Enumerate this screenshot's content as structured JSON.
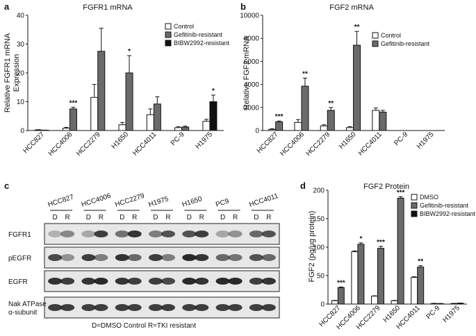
{
  "colors": {
    "control": "#ffffff",
    "gefitinib": "#6b6b6b",
    "bibw": "#111111",
    "axis": "#111111"
  },
  "panels": {
    "a": {
      "letter": "a",
      "title": "FGFR1 mRNA"
    },
    "b": {
      "letter": "b",
      "title": "FGF2 mRNA"
    },
    "c": {
      "letter": "c"
    },
    "d": {
      "letter": "d",
      "title": "FGF2 Protein"
    }
  },
  "chart_data": [
    {
      "id": "a",
      "type": "bar",
      "title": "FGFR1 mRNA",
      "ylabel": "Relative FGFR1 mRNA\nExpression",
      "ylim": [
        0,
        40
      ],
      "yticks": [
        0,
        10,
        20,
        30,
        40
      ],
      "categories": [
        "HCC827",
        "HCC4006",
        "HCC2279",
        "H1650",
        "HCC4011",
        "PC-9",
        "H1975"
      ],
      "legend_position": "top-right",
      "series": [
        {
          "name": "Control",
          "color": "#ffffff",
          "values": [
            0.2,
            0.8,
            11.5,
            2,
            5.5,
            1,
            3.2
          ],
          "errors": [
            0.1,
            0.3,
            4.5,
            0.8,
            2,
            0.3,
            0.7
          ]
        },
        {
          "name": "Gefitinib-resistant",
          "color": "#6b6b6b",
          "values": [
            0.1,
            7.5,
            27.5,
            20,
            9.2,
            1.2,
            null
          ],
          "errors": [
            0.05,
            0.6,
            8,
            6,
            2.5,
            0.3,
            null
          ]
        },
        {
          "name": "BIBW2992-resistant",
          "color": "#111111",
          "values": [
            null,
            null,
            null,
            null,
            null,
            null,
            10
          ],
          "errors": [
            null,
            null,
            null,
            null,
            null,
            null,
            2.3
          ]
        }
      ],
      "annotations": [
        {
          "category": "HCC4006",
          "text": "***"
        },
        {
          "category": "H1650",
          "text": "*"
        },
        {
          "category": "H1975",
          "text": "*"
        }
      ]
    },
    {
      "id": "b",
      "type": "bar",
      "title": "FGF2 mRNA",
      "ylabel": "Relative FGF2 mRNA",
      "ylim": [
        0,
        10000
      ],
      "yticks": [
        0,
        2000,
        4000,
        6000,
        8000,
        10000
      ],
      "categories": [
        "HCC827",
        "HCC4006",
        "HCC2279",
        "H1650",
        "HCC4011",
        "PC-9",
        "H1975"
      ],
      "legend_position": "top-right",
      "series": [
        {
          "name": "Control",
          "color": "#ffffff",
          "values": [
            100,
            700,
            400,
            250,
            1750,
            0,
            0
          ],
          "errors": [
            50,
            250,
            100,
            80,
            200,
            0,
            0
          ]
        },
        {
          "name": "Gefitinib-resistant",
          "color": "#6b6b6b",
          "values": [
            750,
            3850,
            1750,
            7400,
            1600,
            0,
            0
          ],
          "errors": [
            80,
            700,
            250,
            1200,
            150,
            0,
            0
          ]
        }
      ],
      "annotations": [
        {
          "category": "HCC827",
          "text": "***"
        },
        {
          "category": "HCC4006",
          "text": "**"
        },
        {
          "category": "HCC2279",
          "text": "**"
        },
        {
          "category": "H1650",
          "text": "**"
        }
      ]
    },
    {
      "id": "d",
      "type": "bar",
      "title": "FGF2 Protein",
      "ylabel": "FGF2 (pg/μg protein)",
      "ylim": [
        0,
        200
      ],
      "yticks": [
        0,
        50,
        100,
        150,
        200
      ],
      "categories": [
        "HCC827",
        "HCC4006",
        "HCC2279",
        "H1650",
        "HCC4011",
        "PC-9",
        "H1975"
      ],
      "legend_position": "top-right",
      "series": [
        {
          "name": "DMSO",
          "color": "#ffffff",
          "values": [
            6,
            92,
            14,
            6,
            47,
            1,
            1
          ],
          "errors": [
            0.5,
            1.5,
            0.5,
            0.5,
            1,
            0.3,
            0.3
          ]
        },
        {
          "name": "Gefitinib-resistant",
          "color": "#6b6b6b",
          "values": [
            29,
            105,
            98,
            186,
            65,
            0.8,
            null
          ],
          "errors": [
            1,
            2.5,
            3.5,
            2.5,
            2.5,
            0.3,
            null
          ]
        },
        {
          "name": "BIBW2992-resistant",
          "color": "#111111",
          "values": [
            null,
            null,
            null,
            null,
            null,
            null,
            1.5
          ],
          "errors": [
            null,
            null,
            null,
            null,
            null,
            null,
            0.3
          ]
        }
      ],
      "annotations": [
        {
          "category": "HCC827",
          "text": "***"
        },
        {
          "category": "HCC4006",
          "text": "*"
        },
        {
          "category": "HCC2279",
          "text": "***"
        },
        {
          "category": "H1650",
          "text": "***"
        },
        {
          "category": "HCC4011",
          "text": "**"
        }
      ]
    }
  ],
  "blot": {
    "cell_lines": [
      "HCC827",
      "HCC4006",
      "HCC2279",
      "H1975",
      "H1650",
      "PC9",
      "HCC4011"
    ],
    "lane_labels": [
      "D",
      "R"
    ],
    "rows": [
      "FGFR1",
      "pEGFR",
      "EGFR",
      "Nak ATPase\nα-subunit"
    ],
    "caption": "D=DMSO Control R=TKI resistant"
  }
}
